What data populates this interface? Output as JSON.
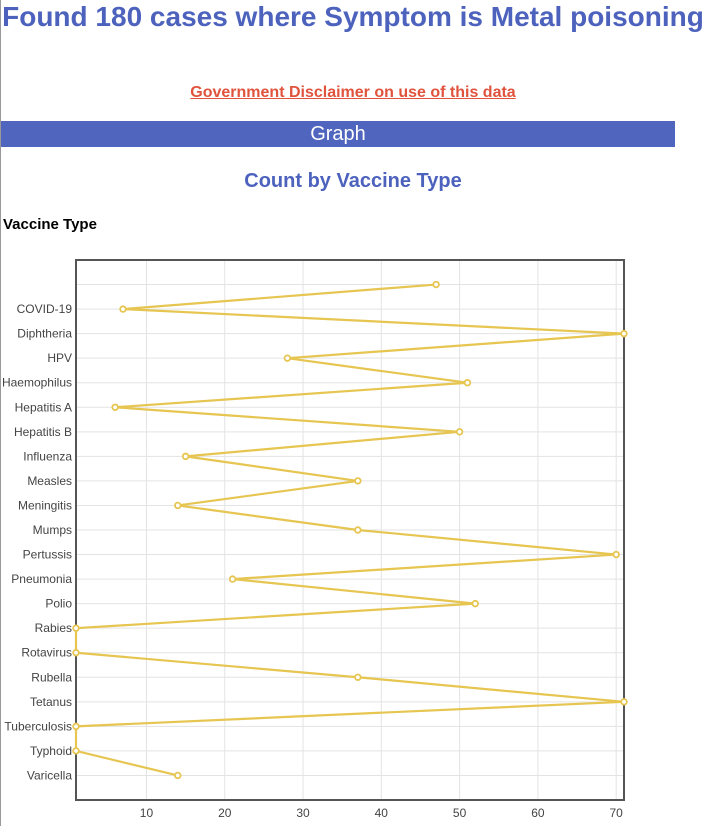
{
  "header": {
    "title": "Found 180 cases where Symptom is Metal poisoning",
    "disclaimer": "Government Disclaimer on use of this data",
    "section": "Graph"
  },
  "chart_data": {
    "type": "line",
    "title": "Count by Vaccine Type",
    "ylabel": "Vaccine Type",
    "xlabel": "",
    "orientation": "horizontal",
    "categories": [
      "",
      "COVID-19",
      "Diphtheria",
      "HPV",
      "Haemophilus",
      "Hepatitis A",
      "Hepatitis B",
      "Influenza",
      "Measles",
      "Meningitis",
      "Mumps",
      "Pertussis",
      "Pneumonia",
      "Polio",
      "Rabies",
      "Rotavirus",
      "Rubella",
      "Tetanus",
      "Tuberculosis",
      "Typhoid",
      "Varicella"
    ],
    "values": [
      47,
      7,
      71,
      28,
      51,
      6,
      50,
      15,
      37,
      14,
      37,
      70,
      21,
      52,
      1,
      1,
      37,
      71,
      1,
      1,
      14
    ],
    "xlim": [
      1,
      71
    ],
    "xticks": [
      10,
      20,
      30,
      40,
      50,
      60,
      70
    ],
    "grid": true,
    "line_color": "#e6c550"
  }
}
